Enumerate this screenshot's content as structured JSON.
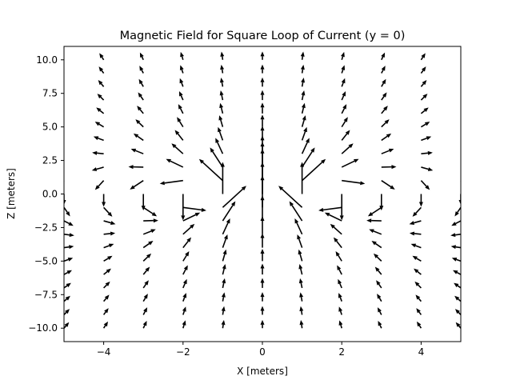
{
  "chart_data": {
    "type": "quiver",
    "title": "Magnetic Field for Square Loop of Current (y = 0)",
    "xlabel": "X [meters]",
    "ylabel": "Z [meters]",
    "xlim": [
      -5,
      5
    ],
    "ylim": [
      -11,
      11
    ],
    "xticks": [
      -4,
      -2,
      0,
      2,
      4
    ],
    "xtick_labels": [
      "−4",
      "−2",
      "0",
      "2",
      "4"
    ],
    "yticks": [
      -10,
      -7.5,
      -5,
      -2.5,
      0,
      2.5,
      5,
      7.5,
      10
    ],
    "ytick_labels": [
      "−10.0",
      "−7.5",
      "−5.0",
      "−2.5",
      "0.0",
      "2.5",
      "5.0",
      "7.5",
      "10.0"
    ],
    "grid": false,
    "legend": "none",
    "arrow_color": "#000000",
    "grid_x": [
      -5,
      -4,
      -3,
      -2,
      -1,
      0,
      1,
      2,
      3,
      4,
      5
    ],
    "grid_z": [
      -10,
      -9,
      -8,
      -7,
      -6,
      -5,
      -4,
      -3,
      -2,
      -1,
      0,
      1,
      2,
      3,
      4,
      5,
      6,
      7,
      8,
      9,
      10
    ]
  }
}
